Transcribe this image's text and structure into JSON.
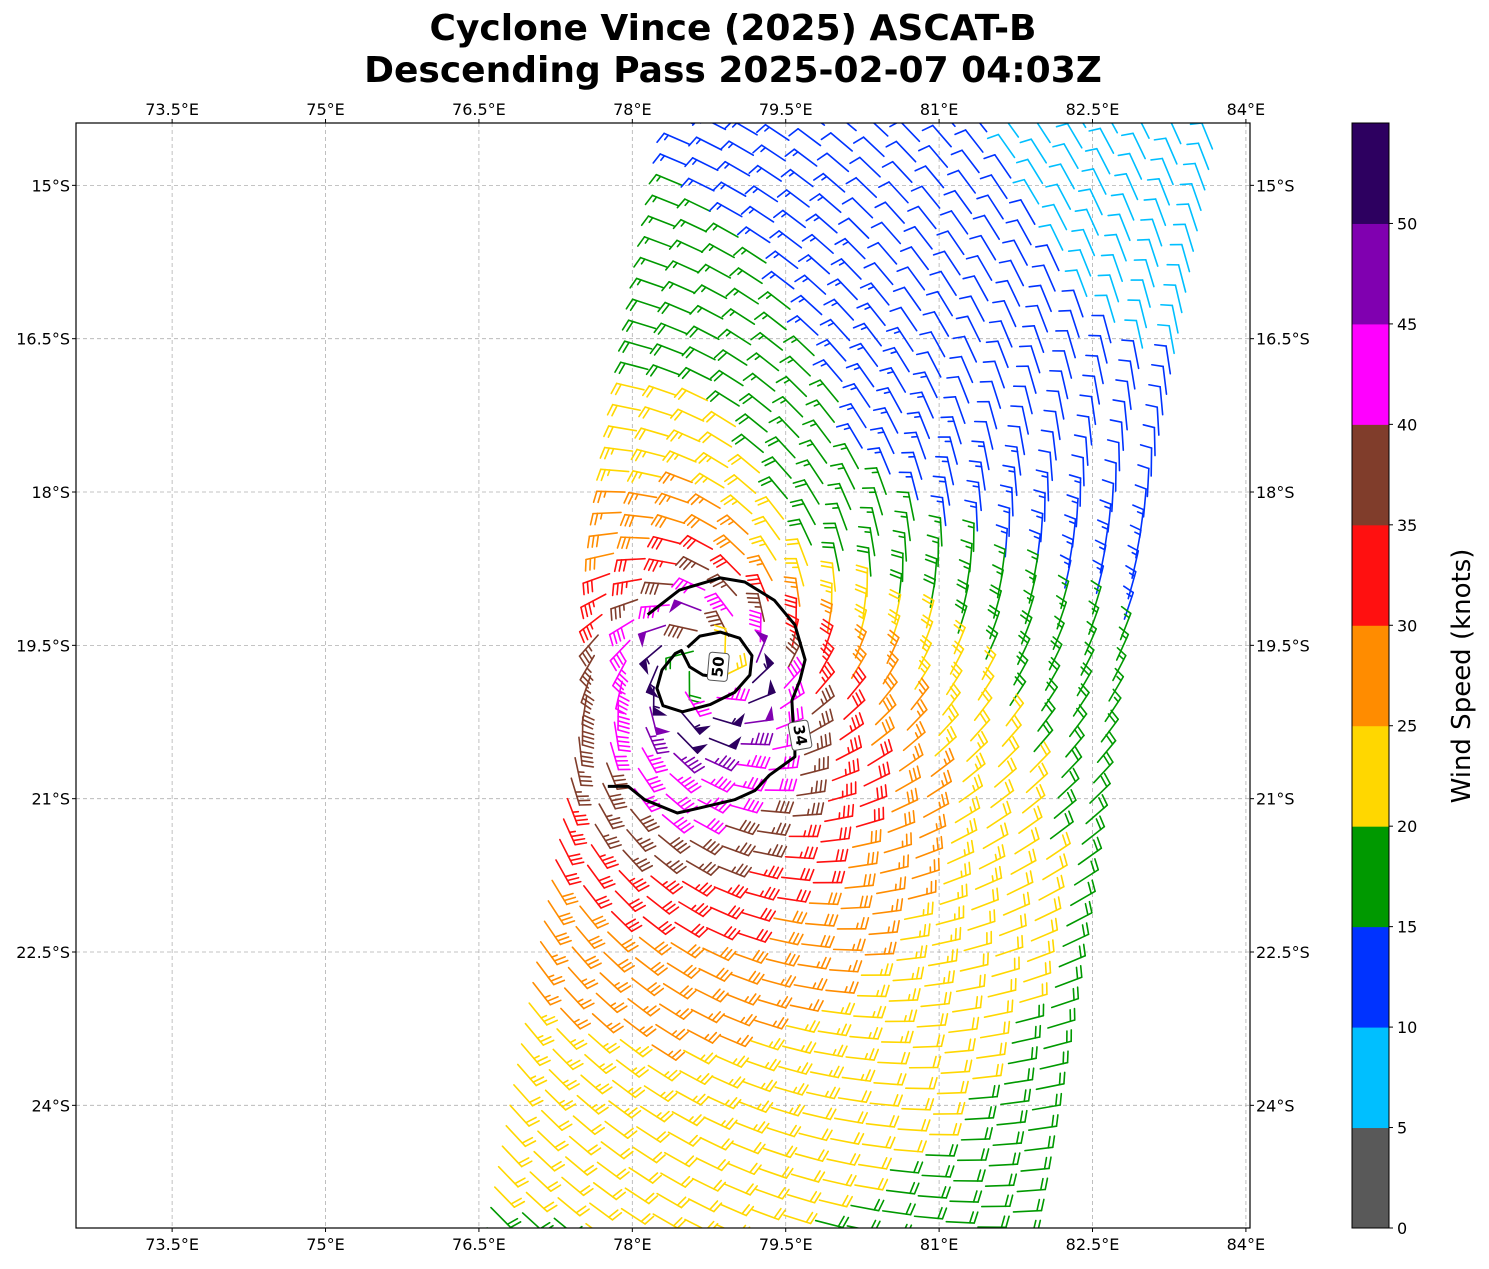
{
  "title": {
    "line1": "Cyclone Vince (2025) ASCAT-B",
    "line2": "Descending Pass 2025-02-07 04:03Z"
  },
  "chart_data": {
    "type": "wind-barbs",
    "title": "Cyclone Vince (2025) ASCAT-B Descending Pass 2025-02-07 04:03Z",
    "extent": {
      "lon": [
        72.56,
        84.04
      ],
      "lat": [
        -25.2,
        -14.39
      ]
    },
    "grid": true,
    "x_ticks": [
      {
        "value": 73.5,
        "label": "73.5°E"
      },
      {
        "value": 75,
        "label": "75°E"
      },
      {
        "value": 76.5,
        "label": "76.5°E"
      },
      {
        "value": 78,
        "label": "78°E"
      },
      {
        "value": 79.5,
        "label": "79.5°E"
      },
      {
        "value": 81,
        "label": "81°E"
      },
      {
        "value": 82.5,
        "label": "82.5°E"
      },
      {
        "value": 84,
        "label": "84°E"
      }
    ],
    "y_ticks": [
      {
        "value": -15,
        "label": "15°S"
      },
      {
        "value": -16.5,
        "label": "16.5°S"
      },
      {
        "value": -18,
        "label": "18°S"
      },
      {
        "value": -19.5,
        "label": "19.5°S"
      },
      {
        "value": -21,
        "label": "21°S"
      },
      {
        "value": -22.5,
        "label": "22.5°S"
      },
      {
        "value": -24,
        "label": "24°S"
      }
    ],
    "swath": {
      "lat_range": [
        -25.6,
        -13.8
      ],
      "left_lon_at_lat_-14.4": 78.6,
      "left_lon_per_deg_south": -0.187,
      "width_lon": 5.1,
      "row_step_lat": 0.2,
      "col_step_lon": 0.31,
      "row_tilt_lat_per_lon": -0.17
    },
    "cyclone": {
      "center": {
        "lon": 78.71,
        "lat": -19.69
      },
      "vmax_kt": 52,
      "rmax_deg": 0.45,
      "decay_exponent": 0.55,
      "inflow_deg": 25,
      "rotation": "clockwise"
    },
    "contours": [
      {
        "level": 34,
        "label": "34",
        "label_at": [
          79.64,
          -20.38
        ],
        "points": [
          [
            78.15,
            -19.2
          ],
          [
            78.46,
            -18.96
          ],
          [
            78.86,
            -18.84
          ],
          [
            79.1,
            -18.88
          ],
          [
            79.39,
            -19.06
          ],
          [
            79.59,
            -19.3
          ],
          [
            79.69,
            -19.64
          ],
          [
            79.64,
            -19.84
          ],
          [
            79.56,
            -20.04
          ],
          [
            79.57,
            -20.23
          ],
          [
            79.59,
            -20.52
          ],
          [
            79.59,
            -20.59
          ],
          [
            79.34,
            -20.77
          ],
          [
            79.2,
            -20.92
          ],
          [
            79.0,
            -21.01
          ],
          [
            78.66,
            -21.09
          ],
          [
            78.44,
            -21.14
          ],
          [
            78.12,
            -21.01
          ],
          [
            77.96,
            -20.88
          ],
          [
            77.76,
            -20.88
          ]
        ]
      },
      {
        "level": 50,
        "label": "50",
        "label_at": [
          78.84,
          -19.71
        ],
        "points": [
          [
            78.54,
            -19.52
          ],
          [
            78.66,
            -19.41
          ],
          [
            78.86,
            -19.37
          ],
          [
            79.05,
            -19.43
          ],
          [
            79.17,
            -19.6
          ],
          [
            79.15,
            -19.79
          ],
          [
            79.0,
            -19.96
          ],
          [
            78.76,
            -20.08
          ],
          [
            78.49,
            -20.15
          ],
          [
            78.3,
            -20.09
          ],
          [
            78.24,
            -19.92
          ],
          [
            78.29,
            -19.74
          ],
          [
            78.42,
            -19.58
          ],
          [
            78.48,
            -19.55
          ],
          [
            78.56,
            -19.71
          ],
          [
            78.69,
            -19.79
          ],
          [
            78.76,
            -19.8
          ]
        ]
      }
    ],
    "colorbar": {
      "label": "Wind Speed (knots)",
      "levels": [
        0,
        5,
        10,
        15,
        20,
        25,
        30,
        35,
        40,
        45,
        50,
        55
      ],
      "colors": [
        "#595959",
        "#00bfff",
        "#0033ff",
        "#009900",
        "#ffd700",
        "#ff8c00",
        "#ff1010",
        "#803d2b",
        "#ff00ff",
        "#8000b0",
        "#2d0060"
      ],
      "ticks": [
        {
          "value": 0,
          "label": "0"
        },
        {
          "value": 5,
          "label": "5"
        },
        {
          "value": 10,
          "label": "10"
        },
        {
          "value": 15,
          "label": "15"
        },
        {
          "value": 20,
          "label": "20"
        },
        {
          "value": 25,
          "label": "25"
        },
        {
          "value": 30,
          "label": "30"
        },
        {
          "value": 35,
          "label": "35"
        },
        {
          "value": 40,
          "label": "40"
        },
        {
          "value": 45,
          "label": "45"
        },
        {
          "value": 50,
          "label": "50"
        }
      ]
    }
  }
}
